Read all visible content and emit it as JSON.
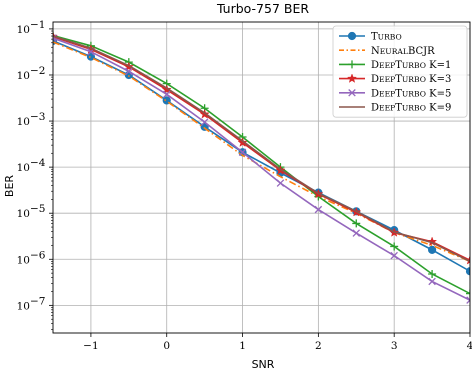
{
  "chart_data": {
    "type": "line",
    "title": "Turbo-757 BER",
    "xlabel": "SNR",
    "ylabel": "BER",
    "xlim": [
      -1.5,
      4
    ],
    "ylim_log10": [
      -7.6,
      -0.85
    ],
    "y_scale": "log",
    "grid": true,
    "legend_position": "top-right",
    "x_ticks": [
      -1,
      0,
      1,
      2,
      3,
      4
    ],
    "y_ticks": [
      -7,
      -6,
      -5,
      -4,
      -3,
      -2,
      -1
    ],
    "x_tick_labels": [
      "−1",
      "0",
      "1",
      "2",
      "3",
      "4"
    ],
    "y_tick_labels": [
      "10",
      "10",
      "10",
      "10",
      "10",
      "10",
      "10"
    ],
    "y_tick_exponents": [
      "−7",
      "−6",
      "−5",
      "−4",
      "−3",
      "−2",
      "−1"
    ],
    "x": [
      -1.5,
      -1,
      -0.5,
      0,
      0.5,
      1,
      1.5,
      2,
      2.5,
      3,
      3.5,
      4
    ],
    "series": [
      {
        "name": "Turbo",
        "color": "#1f77b4",
        "marker": "circle",
        "linestyle": "solid",
        "values": [
          0.055,
          0.025,
          0.01,
          0.0028,
          0.00075,
          0.00021,
          7.5e-05,
          2.8e-05,
          1.1e-05,
          4.3e-06,
          1.6e-06,
          5.5e-07
        ]
      },
      {
        "name": "NeuralBCJR",
        "color": "#ff7f0e",
        "marker": "none",
        "linestyle": "dashdot",
        "values": [
          0.052,
          0.024,
          0.0095,
          0.0027,
          0.0007,
          0.00018,
          6.2e-05,
          2.3e-05,
          1e-05,
          3.8e-06,
          2e-06,
          9e-07
        ]
      },
      {
        "name": "DeepTurbo K=1",
        "color": "#2ca02c",
        "marker": "plus",
        "linestyle": "solid",
        "values": [
          0.072,
          0.043,
          0.019,
          0.0065,
          0.0019,
          0.00045,
          0.0001,
          2.3e-05,
          6e-06,
          1.9e-06,
          4.8e-07,
          1.8e-07
        ]
      },
      {
        "name": "DeepTurbo K=3",
        "color": "#d62728",
        "marker": "star",
        "linestyle": "solid",
        "values": [
          0.068,
          0.036,
          0.015,
          0.0048,
          0.0014,
          0.00034,
          8.5e-05,
          2.6e-05,
          1.05e-05,
          3.8e-06,
          2.4e-06,
          9.5e-07
        ]
      },
      {
        "name": "DeepTurbo K=5",
        "color": "#9467bd",
        "marker": "x",
        "linestyle": "solid",
        "values": [
          0.063,
          0.032,
          0.012,
          0.0038,
          0.00095,
          0.00021,
          4.5e-05,
          1.2e-05,
          3.7e-06,
          1.2e-06,
          3.3e-07,
          1.3e-07
        ]
      },
      {
        "name": "DeepTurbo K=9",
        "color": "#8c564b",
        "marker": "none",
        "linestyle": "solid",
        "values": [
          0.07,
          0.038,
          0.016,
          0.0052,
          0.0015,
          0.00037,
          9e-05,
          2.7e-05,
          1.1e-05,
          3.9e-06,
          2.3e-06,
          9e-07
        ]
      }
    ],
    "legend_labels": [
      {
        "cap": "T",
        "small": "urbo",
        "suffix": ""
      },
      {
        "cap": "N",
        "small": "eural",
        "cap2": "BCJR",
        "suffix": ""
      },
      {
        "cap": "D",
        "small": "eep",
        "cap2": "T",
        "small2": "urbo",
        "suffix": " K=1"
      },
      {
        "cap": "D",
        "small": "eep",
        "cap2": "T",
        "small2": "urbo",
        "suffix": " K=3"
      },
      {
        "cap": "D",
        "small": "eep",
        "cap2": "T",
        "small2": "urbo",
        "suffix": " K=5"
      },
      {
        "cap": "D",
        "small": "eep",
        "cap2": "T",
        "small2": "urbo",
        "suffix": " K=9"
      }
    ]
  }
}
